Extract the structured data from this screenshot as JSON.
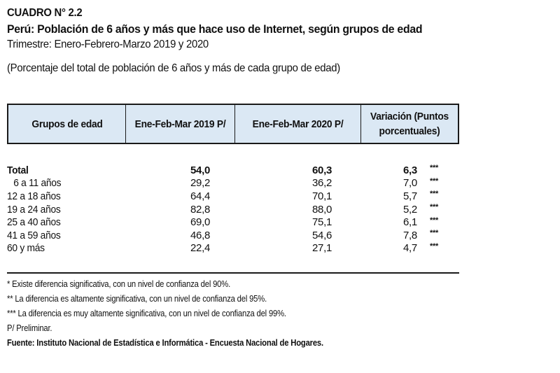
{
  "header": {
    "cuadro": "CUADRO N° 2.2",
    "title": "Perú: Población de 6 años y más que hace uso de Internet,  según grupos de edad",
    "subtitle": "Trimestre: Enero-Febrero-Marzo 2019 y 2020",
    "unit": "(Porcentaje del total de población de 6 años y más de cada grupo de edad)"
  },
  "table": {
    "columns": [
      "Grupos de edad",
      "Ene-Feb-Mar 2019 P/",
      "Ene-Feb-Mar 2020 P/",
      "Variación (Puntos porcentuales)"
    ],
    "rows": [
      {
        "label": "Total",
        "v2019": "54,0",
        "v2020": "60,3",
        "variation": "6,3",
        "sig": "***"
      },
      {
        "label": "6 a 11 años",
        "v2019": "29,2",
        "v2020": "36,2",
        "variation": "7,0",
        "sig": "***"
      },
      {
        "label": "12 a 18 años",
        "v2019": "64,4",
        "v2020": "70,1",
        "variation": "5,7",
        "sig": "***"
      },
      {
        "label": "19 a 24 años",
        "v2019": "82,8",
        "v2020": "88,0",
        "variation": "5,2",
        "sig": "***"
      },
      {
        "label": "25 a 40 años",
        "v2019": "69,0",
        "v2020": "75,1",
        "variation": "6,1",
        "sig": "***"
      },
      {
        "label": "41 a 59 años",
        "v2019": "46,8",
        "v2020": "54,6",
        "variation": "7,8",
        "sig": "***"
      },
      {
        "label": "60 y más",
        "v2019": "22,4",
        "v2020": "27,1",
        "variation": "4,7",
        "sig": "***"
      }
    ]
  },
  "notes": [
    "* Existe diferencia significativa, con un nivel de confianza del 90%.",
    "** La diferencia es altamente significativa, con un nivel de confianza del 95%.",
    "*** La diferencia es muy altamente significativa, con un nivel de confianza del 99%.",
    "P/ Preliminar."
  ],
  "source": "Fuente: Instituto Nacional de Estadística e Informática - Encuesta Nacional de Hogares."
}
